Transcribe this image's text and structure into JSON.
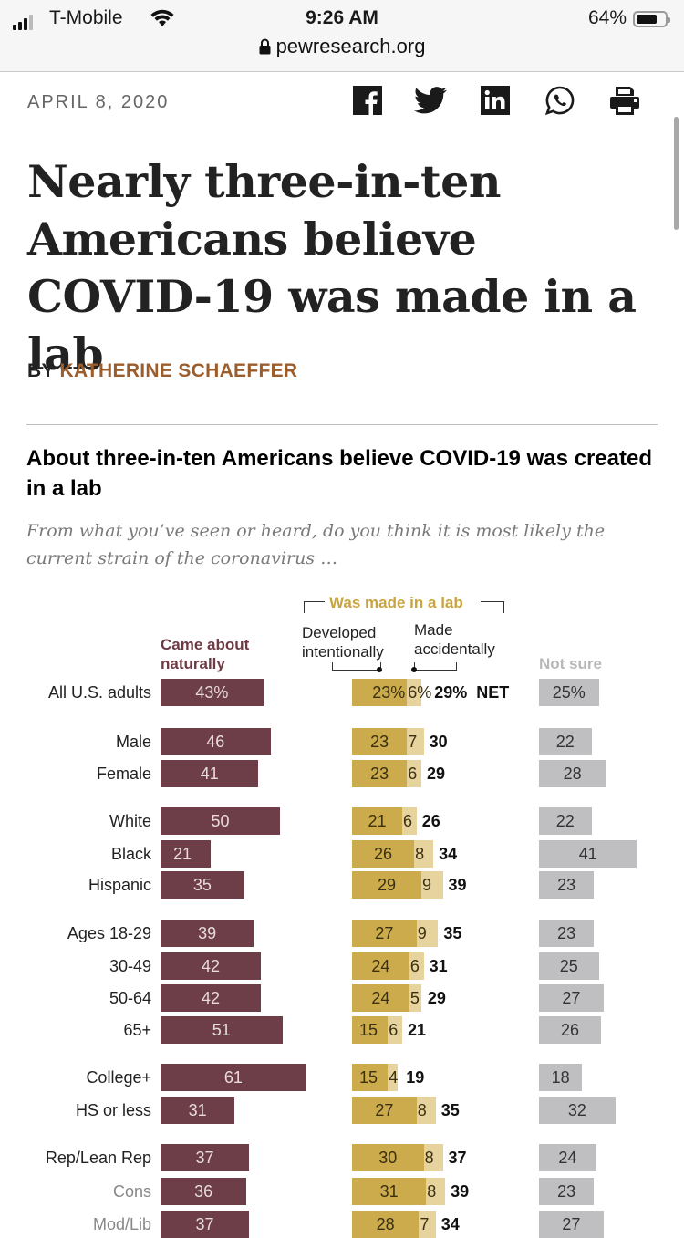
{
  "status_bar": {
    "carrier": "T-Mobile",
    "time": "9:26 AM",
    "battery": "64%",
    "battery_level": 0.64,
    "url": "pewresearch.org"
  },
  "article": {
    "date": "APRIL 8, 2020",
    "share_icons": [
      "facebook-icon",
      "twitter-icon",
      "linkedin-icon",
      "whatsapp-icon",
      "print-icon"
    ],
    "headline": "Nearly three-in-ten Americans believe COVID-19 was made in a lab",
    "byline_prefix": "BY",
    "author": "KATHERINE SCHAEFFER"
  },
  "colors": {
    "natural": "#6d3e47",
    "lab_intentional": "#cbab4b",
    "lab_accidental": "#e6d39d",
    "not_sure": "#bfbfc1",
    "author": "#9c5d2c"
  },
  "chart_data": {
    "type": "bar",
    "title": "About three-in-ten Americans believe COVID-19 was created in a lab",
    "subtitle": "From what you’ve seen or heard, do you think it is most likely the current strain of the coronavirus …",
    "headers": {
      "natural": "Came about naturally",
      "lab_group": "Was made in a lab",
      "intentional": "Developed intentionally",
      "accidental": "Made accidentally",
      "not_sure": "Not sure",
      "net_suffix": "NET"
    },
    "series": [
      {
        "name": "Came about naturally",
        "key": "natural"
      },
      {
        "name": "Developed intentionally",
        "key": "intentional"
      },
      {
        "name": "Made accidentally",
        "key": "accidental"
      },
      {
        "name": "NET made in a lab",
        "key": "net"
      },
      {
        "name": "Not sure",
        "key": "not_sure"
      }
    ],
    "rows": [
      {
        "label": "All U.S. adults",
        "natural": 43,
        "intentional": 23,
        "accidental": 6,
        "net": 29,
        "not_sure": 25,
        "pct": true
      },
      {
        "label": "Male",
        "natural": 46,
        "intentional": 23,
        "accidental": 7,
        "net": 30,
        "not_sure": 22
      },
      {
        "label": "Female",
        "natural": 41,
        "intentional": 23,
        "accidental": 6,
        "net": 29,
        "not_sure": 28
      },
      {
        "label": "White",
        "natural": 50,
        "intentional": 21,
        "accidental": 6,
        "net": 26,
        "not_sure": 22
      },
      {
        "label": "Black",
        "natural": 21,
        "intentional": 26,
        "accidental": 8,
        "net": 34,
        "not_sure": 41
      },
      {
        "label": "Hispanic",
        "natural": 35,
        "intentional": 29,
        "accidental": 9,
        "net": 39,
        "not_sure": 23
      },
      {
        "label": "Ages 18-29",
        "natural": 39,
        "intentional": 27,
        "accidental": 9,
        "net": 35,
        "not_sure": 23
      },
      {
        "label": "30-49",
        "natural": 42,
        "intentional": 24,
        "accidental": 6,
        "net": 31,
        "not_sure": 25
      },
      {
        "label": "50-64",
        "natural": 42,
        "intentional": 24,
        "accidental": 5,
        "net": 29,
        "not_sure": 27
      },
      {
        "label": "65+",
        "natural": 51,
        "intentional": 15,
        "accidental": 6,
        "net": 21,
        "not_sure": 26
      },
      {
        "label": "College+",
        "natural": 61,
        "intentional": 15,
        "accidental": 4,
        "net": 19,
        "not_sure": 18
      },
      {
        "label": "HS or less",
        "natural": 31,
        "intentional": 27,
        "accidental": 8,
        "net": 35,
        "not_sure": 32
      },
      {
        "label": "Rep/Lean Rep",
        "natural": 37,
        "intentional": 30,
        "accidental": 8,
        "net": 37,
        "not_sure": 24
      },
      {
        "label": "Cons",
        "natural": 36,
        "intentional": 31,
        "accidental": 8,
        "net": 39,
        "not_sure": 23,
        "sub": true
      },
      {
        "label": "Mod/Lib",
        "natural": 37,
        "intentional": 28,
        "accidental": 7,
        "net": 34,
        "not_sure": 27,
        "sub": true
      }
    ]
  }
}
